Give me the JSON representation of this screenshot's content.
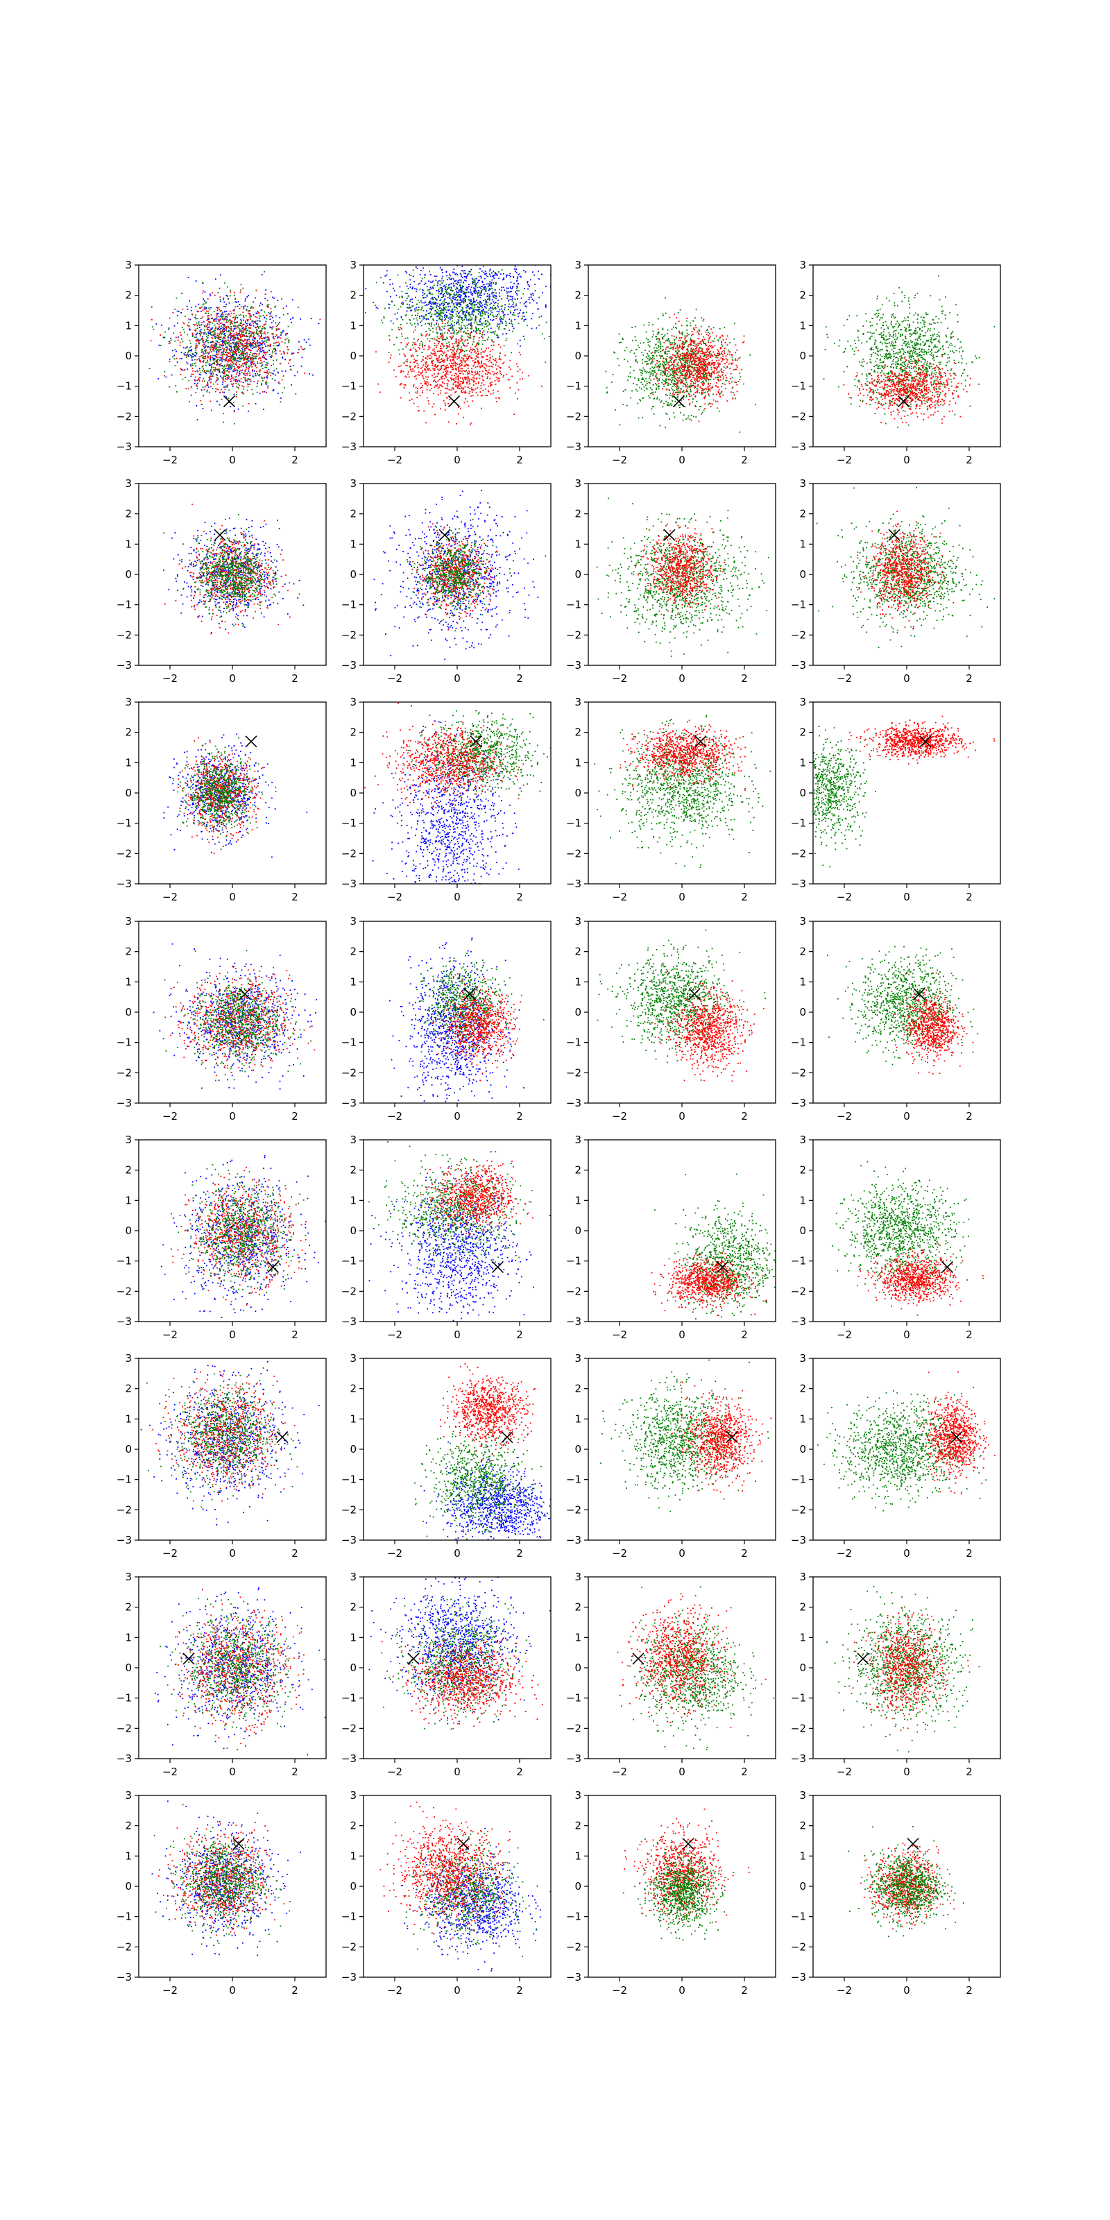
{
  "chart_data": {
    "type": "scatter",
    "layout": {
      "rows": 8,
      "cols": 4
    },
    "xlim": [
      -3,
      3
    ],
    "ylim": [
      -3,
      3
    ],
    "xticks": [
      -2,
      0,
      2
    ],
    "yticks": [
      -3,
      -2,
      -1,
      0,
      1,
      2,
      3
    ],
    "grid": false,
    "colors": {
      "blue": "#0000ff",
      "green": "#008000",
      "red": "#ff0000",
      "marker": "#000000"
    },
    "marker_symbol": "×",
    "rows": [
      {
        "marker": [
          -0.1,
          -1.5
        ],
        "panels": [
          {
            "clusters": [
              {
                "color": "blue",
                "cx": 0.0,
                "cy": 0.3,
                "sx": 0.95,
                "sy": 0.8,
                "n": 700
              },
              {
                "color": "green",
                "cx": 0.0,
                "cy": 0.3,
                "sx": 0.85,
                "sy": 0.75,
                "n": 700
              },
              {
                "color": "red",
                "cx": 0.0,
                "cy": 0.3,
                "sx": 0.85,
                "sy": 0.75,
                "n": 700
              }
            ]
          },
          {
            "clusters": [
              {
                "color": "blue",
                "cx": 0.4,
                "cy": 2.0,
                "sx": 1.1,
                "sy": 0.6,
                "n": 900
              },
              {
                "color": "green",
                "cx": 0.0,
                "cy": 1.3,
                "sx": 1.0,
                "sy": 0.7,
                "n": 700
              },
              {
                "color": "red",
                "cx": -0.1,
                "cy": -0.4,
                "sx": 0.85,
                "sy": 0.6,
                "n": 900
              }
            ]
          },
          {
            "clusters": [
              {
                "color": "green",
                "cx": -0.2,
                "cy": -0.4,
                "sx": 0.8,
                "sy": 0.7,
                "n": 900
              },
              {
                "color": "red",
                "cx": 0.5,
                "cy": -0.3,
                "sx": 0.6,
                "sy": 0.55,
                "n": 800
              }
            ]
          },
          {
            "clusters": [
              {
                "color": "green",
                "cx": 0.0,
                "cy": 0.0,
                "sx": 0.85,
                "sy": 0.8,
                "n": 1000
              },
              {
                "color": "red",
                "cx": 0.1,
                "cy": -1.1,
                "sx": 0.7,
                "sy": 0.4,
                "n": 700
              }
            ]
          }
        ]
      },
      {
        "marker": [
          -0.4,
          1.3
        ],
        "panels": [
          {
            "clusters": [
              {
                "color": "blue",
                "cx": 0.0,
                "cy": 0.0,
                "sx": 0.75,
                "sy": 0.75,
                "n": 600
              },
              {
                "color": "red",
                "cx": 0.0,
                "cy": 0.0,
                "sx": 0.65,
                "sy": 0.65,
                "n": 600
              },
              {
                "color": "green",
                "cx": 0.0,
                "cy": 0.0,
                "sx": 0.55,
                "sy": 0.55,
                "n": 700
              }
            ]
          },
          {
            "clusters": [
              {
                "color": "blue",
                "cx": 0.0,
                "cy": 0.0,
                "sx": 0.95,
                "sy": 1.0,
                "n": 800
              },
              {
                "color": "red",
                "cx": -0.1,
                "cy": 0.0,
                "sx": 0.55,
                "sy": 0.55,
                "n": 600
              },
              {
                "color": "green",
                "cx": -0.1,
                "cy": 0.0,
                "sx": 0.5,
                "sy": 0.55,
                "n": 600
              }
            ]
          },
          {
            "clusters": [
              {
                "color": "green",
                "cx": 0.0,
                "cy": -0.2,
                "sx": 1.0,
                "sy": 0.85,
                "n": 1000
              },
              {
                "color": "red",
                "cx": 0.0,
                "cy": 0.2,
                "sx": 0.5,
                "sy": 0.55,
                "n": 700
              }
            ]
          },
          {
            "clusters": [
              {
                "color": "green",
                "cx": 0.0,
                "cy": 0.0,
                "sx": 0.85,
                "sy": 0.8,
                "n": 1000
              },
              {
                "color": "red",
                "cx": -0.1,
                "cy": 0.1,
                "sx": 0.5,
                "sy": 0.6,
                "n": 700
              }
            ]
          }
        ]
      },
      {
        "marker": [
          0.6,
          1.7
        ],
        "panels": [
          {
            "clusters": [
              {
                "color": "blue",
                "cx": -0.4,
                "cy": 0.0,
                "sx": 0.65,
                "sy": 0.7,
                "n": 600
              },
              {
                "color": "red",
                "cx": -0.4,
                "cy": 0.0,
                "sx": 0.55,
                "sy": 0.6,
                "n": 600
              },
              {
                "color": "green",
                "cx": -0.4,
                "cy": 0.0,
                "sx": 0.5,
                "sy": 0.55,
                "n": 700
              }
            ]
          },
          {
            "clusters": [
              {
                "color": "blue",
                "cx": -0.2,
                "cy": -1.0,
                "sx": 0.8,
                "sy": 1.3,
                "n": 900
              },
              {
                "color": "green",
                "cx": 0.8,
                "cy": 1.3,
                "sx": 0.8,
                "sy": 0.55,
                "n": 700
              },
              {
                "color": "red",
                "cx": -0.3,
                "cy": 1.0,
                "sx": 0.8,
                "sy": 0.55,
                "n": 800
              }
            ]
          },
          {
            "clusters": [
              {
                "color": "green",
                "cx": 0.0,
                "cy": 0.2,
                "sx": 0.95,
                "sy": 0.85,
                "n": 1000
              },
              {
                "color": "red",
                "cx": 0.1,
                "cy": 1.3,
                "sx": 0.75,
                "sy": 0.4,
                "n": 800
              }
            ]
          },
          {
            "clusters": [
              {
                "color": "green",
                "cx": -2.5,
                "cy": 0.1,
                "sx": 0.55,
                "sy": 0.75,
                "n": 700
              },
              {
                "color": "red",
                "cx": 0.3,
                "cy": 1.7,
                "sx": 0.7,
                "sy": 0.25,
                "n": 800
              }
            ]
          }
        ]
      },
      {
        "marker": [
          0.4,
          0.6
        ],
        "panels": [
          {
            "clusters": [
              {
                "color": "blue",
                "cx": 0.2,
                "cy": -0.3,
                "sx": 0.9,
                "sy": 0.8,
                "n": 700
              },
              {
                "color": "red",
                "cx": 0.2,
                "cy": -0.3,
                "sx": 0.8,
                "sy": 0.7,
                "n": 700
              },
              {
                "color": "green",
                "cx": 0.2,
                "cy": -0.3,
                "sx": 0.7,
                "sy": 0.65,
                "n": 700
              }
            ]
          },
          {
            "clusters": [
              {
                "color": "blue",
                "cx": -0.1,
                "cy": -0.6,
                "sx": 0.7,
                "sy": 1.1,
                "n": 900
              },
              {
                "color": "green",
                "cx": 0.2,
                "cy": 0.3,
                "sx": 0.6,
                "sy": 0.6,
                "n": 600
              },
              {
                "color": "red",
                "cx": 0.7,
                "cy": -0.4,
                "sx": 0.55,
                "sy": 0.55,
                "n": 700
              }
            ]
          },
          {
            "clusters": [
              {
                "color": "green",
                "cx": -0.2,
                "cy": 0.4,
                "sx": 0.8,
                "sy": 0.7,
                "n": 900
              },
              {
                "color": "red",
                "cx": 0.8,
                "cy": -0.6,
                "sx": 0.55,
                "sy": 0.6,
                "n": 800
              }
            ]
          },
          {
            "clusters": [
              {
                "color": "green",
                "cx": 0.0,
                "cy": 0.3,
                "sx": 0.75,
                "sy": 0.75,
                "n": 900
              },
              {
                "color": "red",
                "cx": 0.8,
                "cy": -0.5,
                "sx": 0.4,
                "sy": 0.5,
                "n": 700
              }
            ]
          }
        ]
      },
      {
        "marker": [
          1.3,
          -1.2
        ],
        "panels": [
          {
            "clusters": [
              {
                "color": "blue",
                "cx": 0.3,
                "cy": -0.3,
                "sx": 0.9,
                "sy": 1.0,
                "n": 700
              },
              {
                "color": "red",
                "cx": 0.3,
                "cy": -0.1,
                "sx": 0.8,
                "sy": 0.8,
                "n": 700
              },
              {
                "color": "green",
                "cx": 0.3,
                "cy": -0.1,
                "sx": 0.75,
                "sy": 0.75,
                "n": 700
              }
            ]
          },
          {
            "clusters": [
              {
                "color": "blue",
                "cx": 0.0,
                "cy": -0.7,
                "sx": 0.9,
                "sy": 1.0,
                "n": 900
              },
              {
                "color": "green",
                "cx": -0.1,
                "cy": 0.7,
                "sx": 0.9,
                "sy": 0.7,
                "n": 700
              },
              {
                "color": "red",
                "cx": 0.6,
                "cy": 1.1,
                "sx": 0.6,
                "sy": 0.5,
                "n": 700
              }
            ]
          },
          {
            "clusters": [
              {
                "color": "green",
                "cx": 1.5,
                "cy": -1.0,
                "sx": 0.7,
                "sy": 0.8,
                "n": 800
              },
              {
                "color": "red",
                "cx": 0.8,
                "cy": -1.7,
                "sx": 0.6,
                "sy": 0.35,
                "n": 800
              }
            ]
          },
          {
            "clusters": [
              {
                "color": "green",
                "cx": -0.2,
                "cy": 0.0,
                "sx": 0.85,
                "sy": 0.75,
                "n": 1000
              },
              {
                "color": "red",
                "cx": 0.3,
                "cy": -1.6,
                "sx": 0.6,
                "sy": 0.35,
                "n": 800
              }
            ]
          }
        ]
      },
      {
        "marker": [
          1.6,
          0.4
        ],
        "panels": [
          {
            "clusters": [
              {
                "color": "blue",
                "cx": -0.2,
                "cy": 0.3,
                "sx": 0.9,
                "sy": 0.95,
                "n": 700
              },
              {
                "color": "red",
                "cx": -0.2,
                "cy": 0.5,
                "sx": 0.8,
                "sy": 0.8,
                "n": 700
              },
              {
                "color": "green",
                "cx": -0.2,
                "cy": 0.5,
                "sx": 0.75,
                "sy": 0.8,
                "n": 700
              }
            ]
          },
          {
            "clusters": [
              {
                "color": "blue",
                "cx": 1.3,
                "cy": -1.9,
                "sx": 0.8,
                "sy": 0.6,
                "n": 900
              },
              {
                "color": "green",
                "cx": 0.6,
                "cy": -1.0,
                "sx": 0.7,
                "sy": 0.7,
                "n": 700
              },
              {
                "color": "red",
                "cx": 1.0,
                "cy": 1.3,
                "sx": 0.6,
                "sy": 0.5,
                "n": 800
              }
            ]
          },
          {
            "clusters": [
              {
                "color": "green",
                "cx": -0.1,
                "cy": 0.3,
                "sx": 0.8,
                "sy": 0.8,
                "n": 900
              },
              {
                "color": "red",
                "cx": 1.2,
                "cy": 0.3,
                "sx": 0.5,
                "sy": 0.6,
                "n": 800
              }
            ]
          },
          {
            "clusters": [
              {
                "color": "green",
                "cx": -0.2,
                "cy": 0.0,
                "sx": 0.9,
                "sy": 0.75,
                "n": 1000
              },
              {
                "color": "red",
                "cx": 1.5,
                "cy": 0.4,
                "sx": 0.4,
                "sy": 0.6,
                "n": 800
              }
            ]
          }
        ]
      },
      {
        "marker": [
          -1.4,
          0.3
        ],
        "panels": [
          {
            "clusters": [
              {
                "color": "blue",
                "cx": 0.1,
                "cy": 0.0,
                "sx": 0.9,
                "sy": 0.95,
                "n": 700
              },
              {
                "color": "red",
                "cx": 0.1,
                "cy": 0.0,
                "sx": 0.85,
                "sy": 0.85,
                "n": 700
              },
              {
                "color": "green",
                "cx": 0.1,
                "cy": 0.0,
                "sx": 0.8,
                "sy": 0.8,
                "n": 700
              }
            ]
          },
          {
            "clusters": [
              {
                "color": "blue",
                "cx": 0.0,
                "cy": 0.8,
                "sx": 0.9,
                "sy": 0.9,
                "n": 900
              },
              {
                "color": "green",
                "cx": 0.0,
                "cy": 0.2,
                "sx": 0.8,
                "sy": 0.8,
                "n": 700
              },
              {
                "color": "red",
                "cx": 0.3,
                "cy": -0.4,
                "sx": 0.8,
                "sy": 0.6,
                "n": 800
              }
            ]
          },
          {
            "clusters": [
              {
                "color": "green",
                "cx": 0.3,
                "cy": -0.2,
                "sx": 0.8,
                "sy": 0.8,
                "n": 900
              },
              {
                "color": "red",
                "cx": -0.1,
                "cy": 0.3,
                "sx": 0.65,
                "sy": 0.75,
                "n": 800
              }
            ]
          },
          {
            "clusters": [
              {
                "color": "green",
                "cx": 0.0,
                "cy": 0.1,
                "sx": 0.85,
                "sy": 0.85,
                "n": 1000
              },
              {
                "color": "red",
                "cx": 0.0,
                "cy": 0.0,
                "sx": 0.55,
                "sy": 0.7,
                "n": 700
              }
            ]
          }
        ]
      },
      {
        "marker": [
          0.2,
          1.4
        ],
        "panels": [
          {
            "clusters": [
              {
                "color": "blue",
                "cx": -0.3,
                "cy": 0.1,
                "sx": 0.75,
                "sy": 0.85,
                "n": 700
              },
              {
                "color": "red",
                "cx": -0.3,
                "cy": 0.2,
                "sx": 0.7,
                "sy": 0.75,
                "n": 700
              },
              {
                "color": "green",
                "cx": -0.3,
                "cy": 0.2,
                "sx": 0.65,
                "sy": 0.7,
                "n": 700
              }
            ]
          },
          {
            "clusters": [
              {
                "color": "blue",
                "cx": 0.6,
                "cy": -0.6,
                "sx": 0.8,
                "sy": 0.7,
                "n": 800
              },
              {
                "color": "green",
                "cx": 0.3,
                "cy": -0.2,
                "sx": 0.7,
                "sy": 0.7,
                "n": 600
              },
              {
                "color": "red",
                "cx": -0.3,
                "cy": 0.5,
                "sx": 0.8,
                "sy": 0.75,
                "n": 900
              }
            ]
          },
          {
            "clusters": [
              {
                "color": "red",
                "cx": 0.0,
                "cy": 0.4,
                "sx": 0.6,
                "sy": 0.65,
                "n": 800
              },
              {
                "color": "green",
                "cx": 0.0,
                "cy": -0.2,
                "sx": 0.5,
                "sy": 0.55,
                "n": 800
              }
            ]
          },
          {
            "clusters": [
              {
                "color": "red",
                "cx": 0.0,
                "cy": 0.0,
                "sx": 0.5,
                "sy": 0.55,
                "n": 700
              },
              {
                "color": "green",
                "cx": 0.0,
                "cy": 0.0,
                "sx": 0.55,
                "sy": 0.55,
                "n": 800
              }
            ]
          }
        ]
      }
    ]
  }
}
